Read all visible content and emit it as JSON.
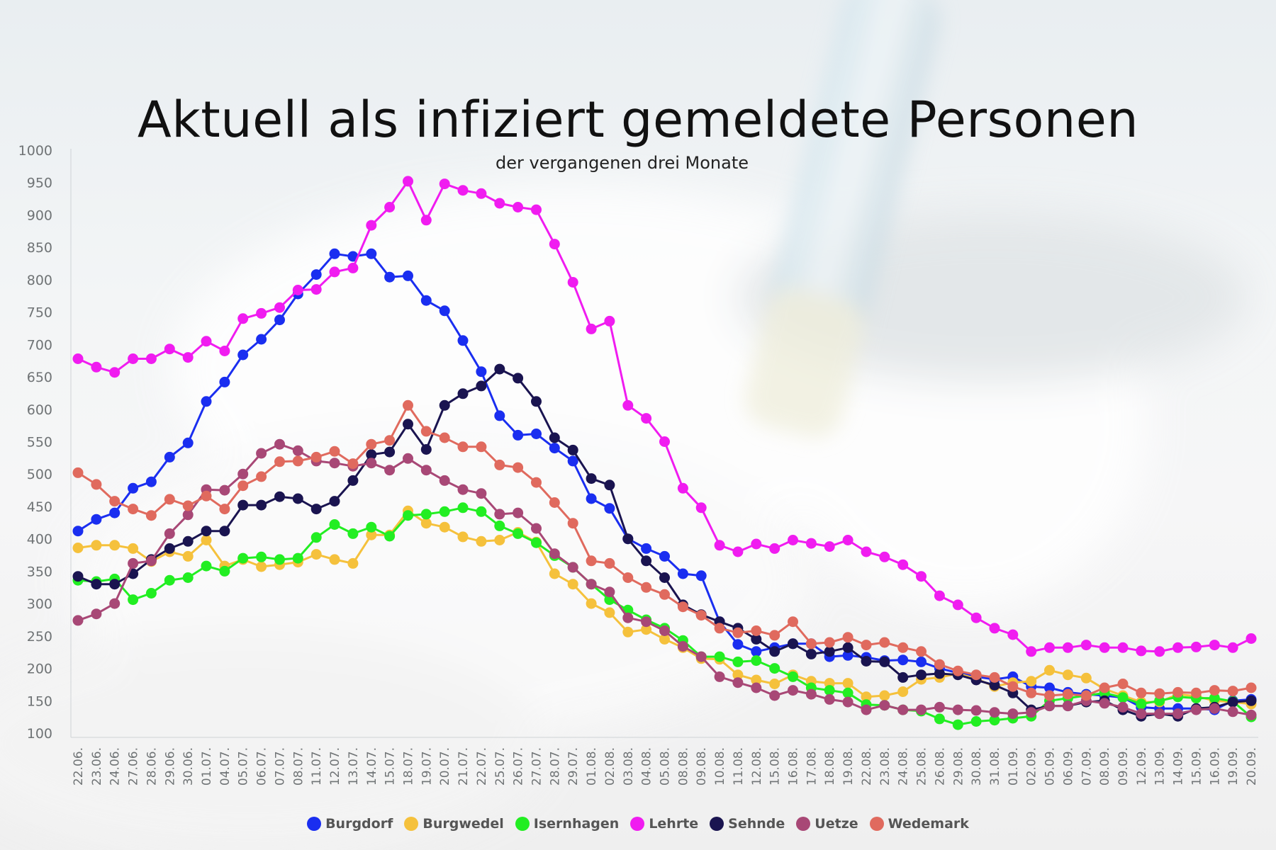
{
  "chart_data": {
    "type": "line",
    "title": "Aktuell als infiziert gemeldete Personen",
    "subtitle": "der vergangenen drei Monate",
    "xlabel": "",
    "ylabel": "",
    "ylim": [
      100,
      1000
    ],
    "y_ticks": [
      100,
      150,
      200,
      250,
      300,
      350,
      400,
      450,
      500,
      550,
      600,
      650,
      700,
      750,
      800,
      850,
      900,
      950,
      1000
    ],
    "grid": false,
    "legend_position": "bottom",
    "categories": [
      "22.06.",
      "23.06.",
      "24.06.",
      "27.06.",
      "28.06.",
      "29.06.",
      "30.06.",
      "01.07.",
      "04.07.",
      "05.07.",
      "06.07.",
      "07.07.",
      "08.07.",
      "11.07.",
      "12.07.",
      "13.07.",
      "14.07.",
      "15.07.",
      "18.07.",
      "19.07.",
      "20.07.",
      "21.07.",
      "22.07.",
      "25.07.",
      "26.07.",
      "27.07.",
      "28.07.",
      "29.07.",
      "01.08.",
      "02.08.",
      "03.08.",
      "04.08.",
      "05.08.",
      "08.08.",
      "09.08.",
      "10.08.",
      "11.08.",
      "12.08.",
      "15.08.",
      "16.08.",
      "17.08.",
      "18.08.",
      "19.08.",
      "22.08.",
      "23.08.",
      "24.08.",
      "25.08.",
      "26.08.",
      "29.08.",
      "30.08.",
      "31.08.",
      "01.09.",
      "02.09.",
      "05.09.",
      "06.09.",
      "07.09.",
      "08.09.",
      "09.09.",
      "12.09.",
      "13.09.",
      "14.09.",
      "15.09.",
      "16.09.",
      "19.09.",
      "20.09."
    ],
    "series": [
      {
        "name": "Burgdorf",
        "color": "#1a2ef0",
        "values": [
          412,
          430,
          440,
          478,
          488,
          526,
          548,
          612,
          642,
          684,
          708,
          738,
          778,
          808,
          840,
          836,
          840,
          804,
          806,
          768,
          752,
          706,
          658,
          590,
          560,
          562,
          540,
          520,
          462,
          447,
          400,
          385,
          373,
          346,
          343,
          272,
          237,
          226,
          232,
          238,
          238,
          218,
          220,
          217,
          212,
          213,
          210,
          200,
          193,
          187,
          183,
          187,
          172,
          170,
          163,
          160,
          158,
          155,
          140,
          138,
          138,
          138,
          136,
          150,
          152
        ]
      },
      {
        "name": "Burgwedel",
        "color": "#f5c13c",
        "values": [
          386,
          390,
          390,
          385,
          365,
          380,
          373,
          398,
          358,
          368,
          357,
          360,
          364,
          376,
          368,
          362,
          406,
          406,
          443,
          424,
          418,
          403,
          396,
          398,
          410,
          395,
          346,
          330,
          300,
          286,
          256,
          260,
          245,
          232,
          215,
          214,
          190,
          182,
          176,
          190,
          180,
          177,
          177,
          156,
          158,
          164,
          183,
          186,
          192,
          184,
          172,
          178,
          180,
          197,
          190,
          185,
          168,
          158,
          148,
          148,
          160,
          157,
          150,
          148,
          145
        ]
      },
      {
        "name": "Isernhagen",
        "color": "#22ee22",
        "values": [
          336,
          334,
          338,
          306,
          316,
          336,
          340,
          358,
          350,
          370,
          372,
          368,
          370,
          402,
          422,
          408,
          418,
          404,
          436,
          438,
          442,
          448,
          442,
          420,
          408,
          394,
          374,
          356,
          330,
          306,
          290,
          275,
          262,
          243,
          218,
          218,
          210,
          212,
          200,
          187,
          170,
          166,
          162,
          144,
          143,
          136,
          134,
          122,
          113,
          118,
          120,
          123,
          126,
          150,
          154,
          158,
          162,
          155,
          145,
          150,
          156,
          154,
          154,
          149,
          125
        ]
      },
      {
        "name": "Lehrte",
        "color": "#f01cf0",
        "values": [
          678,
          665,
          657,
          678,
          678,
          693,
          680,
          705,
          690,
          740,
          748,
          757,
          784,
          785,
          812,
          818,
          884,
          912,
          952,
          892,
          948,
          938,
          933,
          918,
          912,
          908,
          855,
          796,
          724,
          736,
          606,
          586,
          550,
          478,
          448,
          390,
          380,
          392,
          385,
          398,
          393,
          388,
          398,
          380,
          372,
          360,
          342,
          312,
          298,
          278,
          262,
          252,
          226,
          232,
          232,
          236,
          232,
          232,
          227,
          226,
          232,
          233,
          236,
          232,
          246
        ]
      },
      {
        "name": "Sehnde",
        "color": "#1a1450",
        "values": [
          342,
          330,
          330,
          346,
          368,
          385,
          396,
          412,
          412,
          452,
          452,
          465,
          462,
          446,
          458,
          490,
          530,
          534,
          577,
          538,
          606,
          624,
          636,
          662,
          648,
          612,
          556,
          537,
          493,
          483,
          400,
          366,
          340,
          298,
          283,
          272,
          262,
          245,
          226,
          238,
          222,
          226,
          232,
          211,
          210,
          186,
          190,
          192,
          190,
          182,
          174,
          162,
          136,
          142,
          142,
          148,
          150,
          136,
          126,
          130,
          126,
          138,
          140,
          148,
          150
        ]
      },
      {
        "name": "Uetze",
        "color": "#a84876",
        "values": [
          274,
          284,
          300,
          362,
          366,
          408,
          437,
          476,
          475,
          500,
          532,
          546,
          536,
          520,
          517,
          512,
          517,
          506,
          524,
          506,
          490,
          476,
          470,
          438,
          440,
          416,
          377,
          356,
          330,
          318,
          278,
          272,
          258,
          234,
          218,
          187,
          178,
          170,
          158,
          166,
          160,
          152,
          148,
          136,
          143,
          136,
          136,
          140,
          136,
          135,
          132,
          130,
          132,
          142,
          142,
          150,
          146,
          140,
          130,
          130,
          130,
          136,
          138,
          133,
          128
        ]
      },
      {
        "name": "Wedemark",
        "color": "#e06a5e",
        "values": [
          502,
          484,
          458,
          446,
          436,
          461,
          451,
          466,
          446,
          482,
          496,
          519,
          520,
          526,
          535,
          516,
          546,
          552,
          606,
          566,
          556,
          542,
          542,
          514,
          510,
          487,
          456,
          424,
          366,
          362,
          340,
          325,
          314,
          295,
          282,
          262,
          255,
          258,
          251,
          272,
          238,
          240,
          248,
          236,
          240,
          232,
          226,
          206,
          196,
          190,
          186,
          172,
          162,
          158,
          160,
          158,
          170,
          176,
          162,
          161,
          163,
          162,
          166,
          165,
          170
        ]
      }
    ]
  }
}
